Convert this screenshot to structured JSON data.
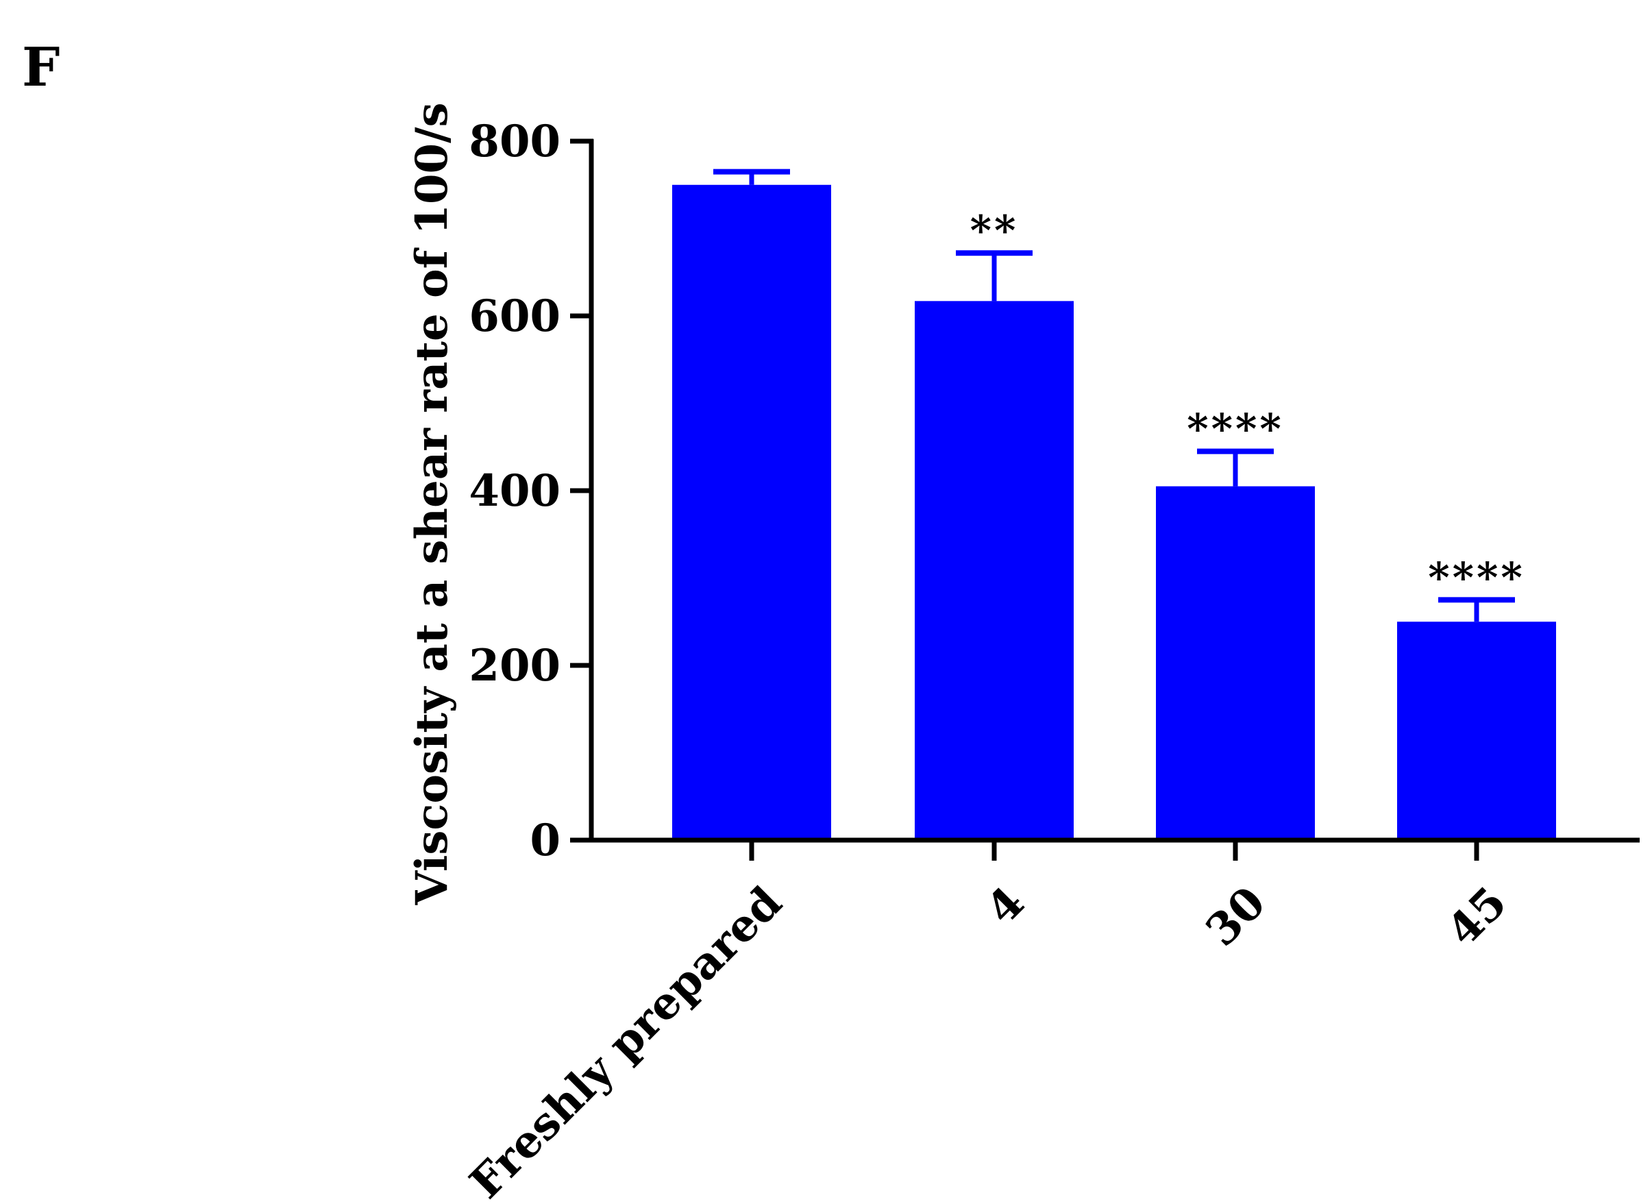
{
  "panel_label": "F",
  "colors": {
    "bar": "#0000ff",
    "axis": "#000000"
  },
  "chart_data": {
    "type": "bar",
    "title": "",
    "xlabel": "",
    "ylabel": "Viscosity at a shear rate of 100/s",
    "ylim": [
      0,
      800
    ],
    "yticks": [
      0,
      200,
      400,
      600,
      800
    ],
    "grid": false,
    "categories": [
      "Freshly prepared",
      "4",
      "30",
      "45"
    ],
    "values": [
      750,
      617,
      405,
      250
    ],
    "errors": [
      15,
      55,
      40,
      25
    ],
    "annotations": [
      "",
      "**",
      "****",
      "****"
    ]
  }
}
